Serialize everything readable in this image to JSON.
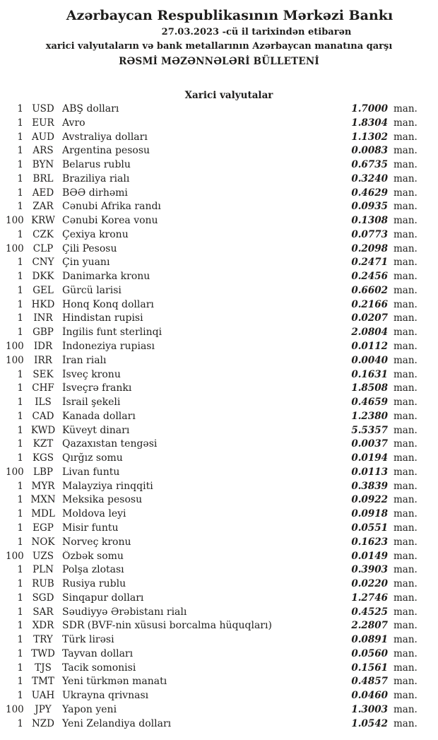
{
  "header": {
    "title": "Azərbaycan Respublikasının Mərkəzi Bankı",
    "date_line": "27.03.2023 -cü il tarixindən etibarən",
    "subject_line": "xarici valyutaların və bank metallarının Azərbaycan manatına qarşı",
    "bulletin_title": "RƏSMİ MƏZƏNNƏLƏRİ BÜLLETENİ"
  },
  "section_title": "Xarici valyutalar",
  "unit_label": "man.",
  "rates": [
    {
      "qty": "1",
      "code": "USD",
      "name": "ABŞ dolları",
      "rate": "1.7000"
    },
    {
      "qty": "1",
      "code": "EUR",
      "name": "Avro",
      "rate": "1.8304"
    },
    {
      "qty": "1",
      "code": "AUD",
      "name": "Avstraliya dolları",
      "rate": "1.1302"
    },
    {
      "qty": "1",
      "code": "ARS",
      "name": "Argentina pesosu",
      "rate": "0.0083"
    },
    {
      "qty": "1",
      "code": "BYN",
      "name": "Belarus rublu",
      "rate": "0.6735"
    },
    {
      "qty": "1",
      "code": "BRL",
      "name": "Braziliya rialı",
      "rate": "0.3240"
    },
    {
      "qty": "1",
      "code": "AED",
      "name": "BƏƏ dirhəmi",
      "rate": "0.4629"
    },
    {
      "qty": "1",
      "code": "ZAR",
      "name": "Cənubi Afrika randı",
      "rate": "0.0935"
    },
    {
      "qty": "100",
      "code": "KRW",
      "name": "Cənubi Korea vonu",
      "rate": "0.1308"
    },
    {
      "qty": "1",
      "code": "CZK",
      "name": "Çexiya kronu",
      "rate": "0.0773"
    },
    {
      "qty": "100",
      "code": "CLP",
      "name": "Çili Pesosu",
      "rate": "0.2098"
    },
    {
      "qty": "1",
      "code": "CNY",
      "name": "Çin yuanı",
      "rate": "0.2471"
    },
    {
      "qty": "1",
      "code": "DKK",
      "name": "Danimarka kronu",
      "rate": "0.2456"
    },
    {
      "qty": "1",
      "code": "GEL",
      "name": "Gürcü larisi",
      "rate": "0.6602"
    },
    {
      "qty": "1",
      "code": "HKD",
      "name": "Honq Konq dolları",
      "rate": "0.2166"
    },
    {
      "qty": "1",
      "code": "INR",
      "name": "Hindistan rupisi",
      "rate": "0.0207"
    },
    {
      "qty": "1",
      "code": "GBP",
      "name": "İngilis funt sterlinqi",
      "rate": "2.0804"
    },
    {
      "qty": "100",
      "code": "IDR",
      "name": "İndoneziya rupiası",
      "rate": "0.0112"
    },
    {
      "qty": "100",
      "code": "IRR",
      "name": "İran rialı",
      "rate": "0.0040"
    },
    {
      "qty": "1",
      "code": "SEK",
      "name": "İsveç kronu",
      "rate": "0.1631"
    },
    {
      "qty": "1",
      "code": "CHF",
      "name": "İsveçrə frankı",
      "rate": "1.8508"
    },
    {
      "qty": "1",
      "code": "ILS",
      "name": "İsrail şekeli",
      "rate": "0.4659"
    },
    {
      "qty": "1",
      "code": "CAD",
      "name": "Kanada dolları",
      "rate": "1.2380"
    },
    {
      "qty": "1",
      "code": "KWD",
      "name": "Küveyt dinarı",
      "rate": "5.5357"
    },
    {
      "qty": "1",
      "code": "KZT",
      "name": "Qazaxıstan tengəsi",
      "rate": "0.0037"
    },
    {
      "qty": "1",
      "code": "KGS",
      "name": "Qırğız somu",
      "rate": "0.0194"
    },
    {
      "qty": "100",
      "code": "LBP",
      "name": "Livan funtu",
      "rate": "0.0113"
    },
    {
      "qty": "1",
      "code": "MYR",
      "name": "Malayziya rinqqiti",
      "rate": "0.3839"
    },
    {
      "qty": "1",
      "code": "MXN",
      "name": "Meksika pesosu",
      "rate": "0.0922"
    },
    {
      "qty": "1",
      "code": "MDL",
      "name": "Moldova leyi",
      "rate": "0.0918"
    },
    {
      "qty": "1",
      "code": "EGP",
      "name": "Misir funtu",
      "rate": "0.0551"
    },
    {
      "qty": "1",
      "code": "NOK",
      "name": "Norveç kronu",
      "rate": "0.1623"
    },
    {
      "qty": "100",
      "code": "UZS",
      "name": "Özbək somu",
      "rate": "0.0149"
    },
    {
      "qty": "1",
      "code": "PLN",
      "name": "Polşa zlotası",
      "rate": "0.3903"
    },
    {
      "qty": "1",
      "code": "RUB",
      "name": "Rusiya rublu",
      "rate": "0.0220"
    },
    {
      "qty": "1",
      "code": "SGD",
      "name": "Sinqapur dolları",
      "rate": "1.2746"
    },
    {
      "qty": "1",
      "code": "SAR",
      "name": "Səudiyyə Ərəbistanı rialı",
      "rate": "0.4525"
    },
    {
      "qty": "1",
      "code": "XDR",
      "name": "SDR (BVF-nin xüsusi borcalma hüquqları)",
      "rate": "2.2807"
    },
    {
      "qty": "1",
      "code": "TRY",
      "name": "Türk lirəsi",
      "rate": "0.0891"
    },
    {
      "qty": "1",
      "code": "TWD",
      "name": "Tayvan dolları",
      "rate": "0.0560"
    },
    {
      "qty": "1",
      "code": "TJS",
      "name": "Tacik somonisi",
      "rate": "0.1561"
    },
    {
      "qty": "1",
      "code": "TMT",
      "name": "Yeni türkmən manatı",
      "rate": "0.4857"
    },
    {
      "qty": "1",
      "code": "UAH",
      "name": "Ukrayna qrivnası",
      "rate": "0.0460"
    },
    {
      "qty": "100",
      "code": "JPY",
      "name": "Yapon yeni",
      "rate": "1.3003"
    },
    {
      "qty": "1",
      "code": "NZD",
      "name": "Yeni Zelandiya dolları",
      "rate": "1.0542"
    }
  ]
}
